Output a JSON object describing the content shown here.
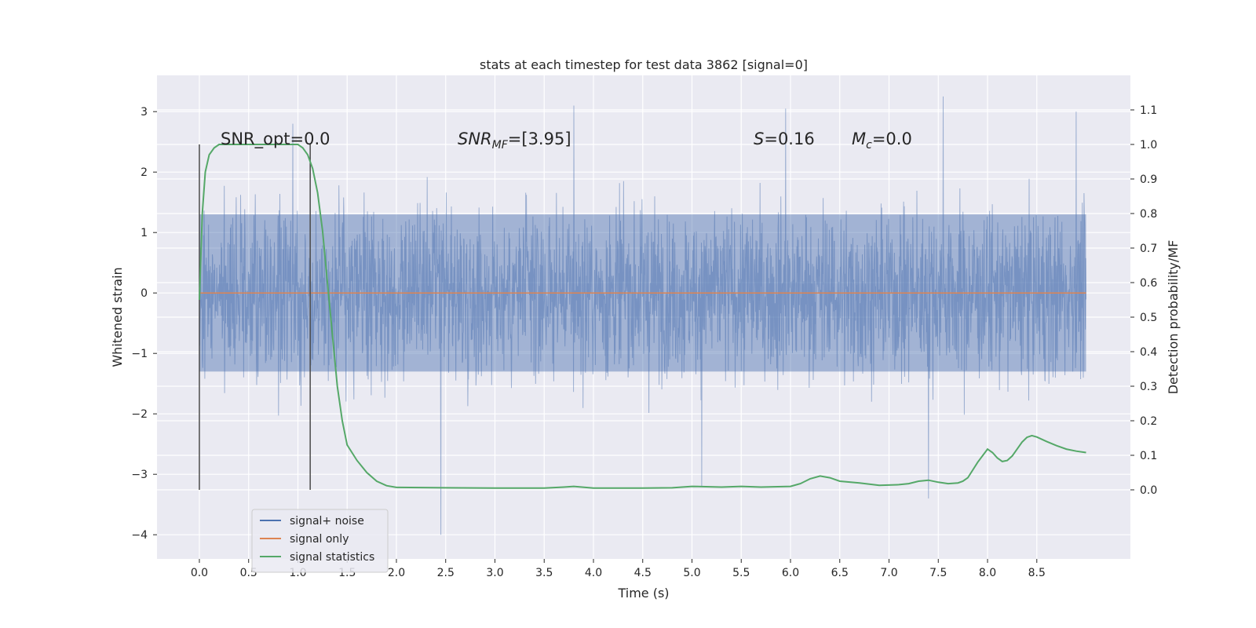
{
  "chart_data": {
    "type": "line",
    "title": "stats at each timestep for test data 3862 [signal=0]",
    "xlabel": "Time (s)",
    "ylabel": "Whitened strain",
    "y2label": "Detection probability/MF",
    "xlim": [
      -0.43,
      9.45
    ],
    "ylim": [
      -4.4,
      3.6
    ],
    "y2lim": [
      -0.2,
      1.2
    ],
    "x_ticks": [
      0.0,
      0.5,
      1.0,
      1.5,
      2.0,
      2.5,
      3.0,
      3.5,
      4.0,
      4.5,
      5.0,
      5.5,
      6.0,
      6.5,
      7.0,
      7.5,
      8.0,
      8.5
    ],
    "x_tick_labels": [
      "0.0",
      "0.5",
      "1.0",
      "1.5",
      "2.0",
      "2.5",
      "3.0",
      "3.5",
      "4.0",
      "4.5",
      "5.0",
      "5.5",
      "6.0",
      "6.5",
      "7.0",
      "7.5",
      "8.0",
      "8.5"
    ],
    "y_ticks": [
      -4,
      -3,
      -2,
      -1,
      0,
      1,
      2,
      3
    ],
    "y_tick_labels": [
      "−4",
      "−3",
      "−2",
      "−1",
      "0",
      "1",
      "2",
      "3"
    ],
    "y2_ticks": [
      0.0,
      0.1,
      0.2,
      0.3,
      0.4,
      0.5,
      0.6,
      0.7,
      0.8,
      0.9,
      1.0,
      1.1
    ],
    "y2_tick_labels": [
      "0.0",
      "0.1",
      "0.2",
      "0.3",
      "0.4",
      "0.5",
      "0.6",
      "0.7",
      "0.8",
      "0.9",
      "1.0",
      "1.1"
    ],
    "grid": true,
    "background": "#eaeaf2",
    "legend": {
      "placement": "lower-left",
      "entries": [
        {
          "label": "signal+ noise",
          "color": "#4c72b0"
        },
        {
          "label": "signal only",
          "color": "#dd8452"
        },
        {
          "label": "signal statistics",
          "color": "#55a868"
        }
      ]
    },
    "annotations": {
      "snr_opt": "SNR_opt=0.0",
      "snr_mf_prefix": "SNR",
      "snr_mf_sub": "MF",
      "snr_mf_value": "=[3.95]",
      "s_prefix": "S",
      "s_value": "=0.16",
      "mc_prefix": "M",
      "mc_sub": "c",
      "mc_value": "=0.0"
    },
    "vertical_markers_x": [
      0.0,
      1.125
    ],
    "series": [
      {
        "name": "signal+ noise",
        "color": "#4c72b0",
        "axis": "left",
        "x_range": [
          0.0,
          9.0
        ],
        "typical_band": [
          -1.3,
          1.3
        ],
        "notable_extremes": [
          {
            "x": 0.95,
            "y": 2.8
          },
          {
            "x": 2.45,
            "y": -4.0
          },
          {
            "x": 3.8,
            "y": 3.1
          },
          {
            "x": 5.95,
            "y": 3.05
          },
          {
            "x": 7.4,
            "y": -3.4
          },
          {
            "x": 7.55,
            "y": 3.25
          },
          {
            "x": 8.9,
            "y": 3.0
          },
          {
            "x": 5.1,
            "y": -3.2
          }
        ]
      },
      {
        "name": "signal only",
        "color": "#dd8452",
        "axis": "left",
        "x": [
          0.0,
          9.0
        ],
        "y": [
          0.0,
          0.0
        ]
      },
      {
        "name": "signal statistics",
        "color": "#55a868",
        "axis": "right",
        "x": [
          0.0,
          0.03,
          0.06,
          0.1,
          0.15,
          0.2,
          0.3,
          0.5,
          0.7,
          0.9,
          1.0,
          1.05,
          1.1,
          1.15,
          1.2,
          1.25,
          1.3,
          1.35,
          1.4,
          1.45,
          1.5,
          1.6,
          1.7,
          1.8,
          1.9,
          2.0,
          2.5,
          3.0,
          3.5,
          3.7,
          3.8,
          4.0,
          4.5,
          4.8,
          5.0,
          5.3,
          5.5,
          5.7,
          6.0,
          6.1,
          6.2,
          6.3,
          6.4,
          6.5,
          6.7,
          6.9,
          7.1,
          7.2,
          7.3,
          7.4,
          7.5,
          7.6,
          7.7,
          7.75,
          7.8,
          7.9,
          8.0,
          8.05,
          8.1,
          8.15,
          8.2,
          8.25,
          8.3,
          8.35,
          8.4,
          8.45,
          8.5,
          8.6,
          8.7,
          8.8,
          8.9,
          9.0
        ],
        "y": [
          0.55,
          0.8,
          0.92,
          0.97,
          0.99,
          1.0,
          1.0,
          1.0,
          1.0,
          1.0,
          1.0,
          0.99,
          0.97,
          0.93,
          0.86,
          0.75,
          0.6,
          0.45,
          0.3,
          0.2,
          0.13,
          0.085,
          0.05,
          0.025,
          0.012,
          0.007,
          0.006,
          0.005,
          0.005,
          0.008,
          0.01,
          0.005,
          0.005,
          0.006,
          0.01,
          0.008,
          0.01,
          0.008,
          0.01,
          0.018,
          0.032,
          0.04,
          0.035,
          0.025,
          0.02,
          0.013,
          0.015,
          0.018,
          0.025,
          0.028,
          0.022,
          0.018,
          0.02,
          0.025,
          0.035,
          0.08,
          0.118,
          0.108,
          0.092,
          0.082,
          0.085,
          0.098,
          0.118,
          0.138,
          0.152,
          0.157,
          0.153,
          0.14,
          0.128,
          0.118,
          0.112,
          0.108
        ]
      }
    ]
  }
}
